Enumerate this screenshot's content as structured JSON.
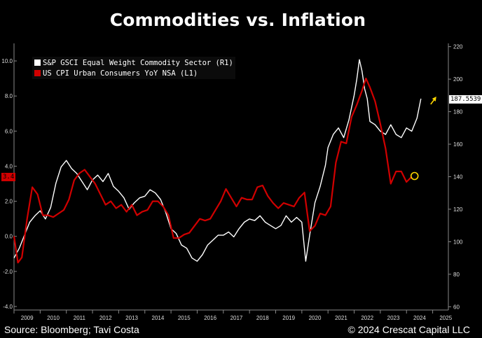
{
  "title": "Commodities vs. Inflation",
  "footer": {
    "source": "Source: Bloomberg; Tavi Costa",
    "copyright": "© 2024 Crescat Capital LLC"
  },
  "colors": {
    "background": "#000000",
    "commodity": "#ffffff",
    "cpi": "#d00000",
    "marker": "#ffd700",
    "arrow": "#ffd700"
  },
  "chart_data": {
    "type": "line",
    "xlim": [
      2009,
      2025.6
    ],
    "x_ticks": [
      "2009",
      "2010",
      "2011",
      "2012",
      "2013",
      "2014",
      "2015",
      "2016",
      "2017",
      "2018",
      "2019",
      "2020",
      "2021",
      "2022",
      "2023",
      "2024",
      "2025"
    ],
    "left_axis": {
      "min": -4.2,
      "max": 11.0,
      "ticks": [
        "-4.0",
        "-2.0",
        "0.0",
        "2.0",
        "4.0",
        "6.0",
        "8.0",
        "10.0"
      ]
    },
    "right_axis": {
      "min": 58,
      "max": 222,
      "ticks": [
        "60",
        "80",
        "100",
        "120",
        "140",
        "160",
        "180",
        "200",
        "220"
      ]
    },
    "legend": {
      "position": "top-left",
      "items": [
        {
          "label": "S&P GSCI Equal Weight Commodity Sector  (R1)",
          "color": "#ffffff"
        },
        {
          "label": "US CPI Urban Consumers YoY NSA  (L1)",
          "color": "#d00000"
        }
      ]
    },
    "callouts": {
      "left": {
        "text": "3.4",
        "value": 3.4
      },
      "right": {
        "text": "187.5539",
        "value": 187.55
      }
    },
    "series": [
      {
        "name": "S&P GSCI Equal Weight Commodity Sector",
        "axis": "right",
        "color": "#ffffff",
        "x": [
          2009.0,
          2009.2,
          2009.4,
          2009.6,
          2009.8,
          2010.0,
          2010.2,
          2010.4,
          2010.6,
          2010.8,
          2011.0,
          2011.2,
          2011.4,
          2011.6,
          2011.8,
          2012.0,
          2012.2,
          2012.4,
          2012.6,
          2012.8,
          2013.0,
          2013.2,
          2013.4,
          2013.6,
          2013.8,
          2014.0,
          2014.2,
          2014.4,
          2014.6,
          2014.8,
          2015.0,
          2015.2,
          2015.4,
          2015.6,
          2015.8,
          2016.0,
          2016.2,
          2016.4,
          2016.6,
          2016.8,
          2017.0,
          2017.2,
          2017.4,
          2017.6,
          2017.8,
          2018.0,
          2018.2,
          2018.4,
          2018.6,
          2018.8,
          2019.0,
          2019.2,
          2019.4,
          2019.6,
          2019.8,
          2020.0,
          2020.15,
          2020.3,
          2020.5,
          2020.7,
          2020.9,
          2021.0,
          2021.2,
          2021.4,
          2021.6,
          2021.8,
          2022.0,
          2022.1,
          2022.2,
          2022.3,
          2022.4,
          2022.5,
          2022.6,
          2022.8,
          2023.0,
          2023.2,
          2023.4,
          2023.6,
          2023.8,
          2024.0,
          2024.2,
          2024.4,
          2024.55
        ],
        "y": [
          90,
          96,
          104,
          112,
          116,
          119,
          114,
          121,
          136,
          146,
          150,
          145,
          142,
          137,
          132,
          138,
          141,
          137,
          142,
          134,
          131,
          127,
          120,
          124,
          127,
          128,
          132,
          130,
          126,
          118,
          108,
          105,
          98,
          96,
          90,
          88,
          92,
          98,
          101,
          104,
          104,
          106,
          103,
          108,
          112,
          114,
          113,
          116,
          112,
          110,
          108,
          110,
          116,
          112,
          115,
          112,
          88,
          104,
          124,
          134,
          147,
          158,
          166,
          170,
          164,
          175,
          190,
          200,
          212,
          205,
          194,
          188,
          174,
          172,
          168,
          166,
          172,
          166,
          164,
          170,
          168,
          176,
          188
        ]
      },
      {
        "name": "US CPI Urban Consumers YoY NSA",
        "axis": "left",
        "color": "#d00000",
        "x": [
          2009.0,
          2009.15,
          2009.3,
          2009.5,
          2009.7,
          2009.9,
          2010.1,
          2010.3,
          2010.5,
          2010.7,
          2010.9,
          2011.1,
          2011.3,
          2011.5,
          2011.7,
          2011.9,
          2012.1,
          2012.3,
          2012.5,
          2012.7,
          2012.9,
          2013.1,
          2013.3,
          2013.5,
          2013.7,
          2013.9,
          2014.1,
          2014.3,
          2014.5,
          2014.7,
          2014.9,
          2015.1,
          2015.3,
          2015.5,
          2015.7,
          2015.9,
          2016.1,
          2016.3,
          2016.5,
          2016.7,
          2016.9,
          2017.1,
          2017.3,
          2017.5,
          2017.7,
          2017.9,
          2018.1,
          2018.3,
          2018.5,
          2018.7,
          2018.9,
          2019.1,
          2019.3,
          2019.5,
          2019.7,
          2019.9,
          2020.1,
          2020.3,
          2020.5,
          2020.7,
          2020.9,
          2021.1,
          2021.3,
          2021.5,
          2021.7,
          2021.9,
          2022.1,
          2022.3,
          2022.45,
          2022.6,
          2022.8,
          2023.0,
          2023.2,
          2023.4,
          2023.6,
          2023.8,
          2024.0,
          2024.2
        ],
        "y": [
          0.0,
          -1.5,
          -1.2,
          1.0,
          2.8,
          2.4,
          1.2,
          1.2,
          1.1,
          1.3,
          1.5,
          2.1,
          3.2,
          3.6,
          3.8,
          3.4,
          3.0,
          2.4,
          1.8,
          2.0,
          1.6,
          1.8,
          1.4,
          1.8,
          1.2,
          1.4,
          1.5,
          2.0,
          2.0,
          1.7,
          1.2,
          -0.1,
          -0.1,
          0.1,
          0.2,
          0.6,
          1.0,
          0.9,
          1.0,
          1.5,
          2.0,
          2.7,
          2.2,
          1.7,
          2.2,
          2.1,
          2.1,
          2.8,
          2.9,
          2.3,
          1.9,
          1.6,
          1.9,
          1.8,
          1.7,
          2.2,
          2.5,
          0.3,
          0.6,
          1.3,
          1.2,
          1.7,
          4.2,
          5.4,
          5.3,
          6.8,
          7.5,
          8.3,
          9.0,
          8.5,
          7.7,
          6.4,
          5.0,
          3.0,
          3.7,
          3.7,
          3.1,
          3.4
        ]
      }
    ]
  }
}
